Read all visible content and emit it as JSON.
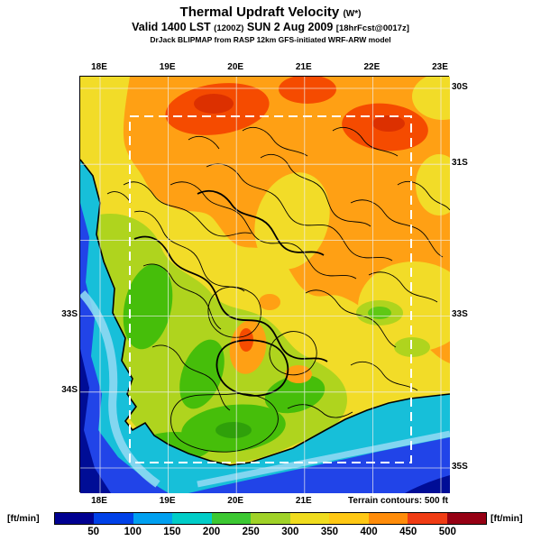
{
  "header": {
    "title": "Thermal Updraft Velocity",
    "title_unit": "(W*)",
    "valid_line": {
      "prefix": "Valid 1400 LST",
      "zulu": "(1200Z)",
      "date": "SUN 2 Aug 2009",
      "fcst": "[18hrFcst@0017z]"
    },
    "attribution": "DrJack BLIPMAP from RASP 12km GFS-initiated WRF-ARW model"
  },
  "map": {
    "axis": {
      "top": [
        "18E",
        "19E",
        "20E",
        "21E",
        "22E",
        "23E"
      ],
      "bottom": [
        "18E",
        "19E",
        "20E",
        "21E"
      ],
      "left": [
        "33S",
        "34S"
      ],
      "right": [
        "30S",
        "31S",
        "33S",
        "35S"
      ]
    }
  },
  "legend": {
    "unit_left": "[ft/min]",
    "unit_right": "[ft/min]",
    "terrain_note": "Terrain contours: 500 ft",
    "ticks": [
      "50",
      "100",
      "150",
      "200",
      "250",
      "300",
      "350",
      "400",
      "450",
      "500"
    ],
    "colors": [
      "#000091",
      "#0041E8",
      "#00A0F0",
      "#00CDC8",
      "#3CC832",
      "#A0D228",
      "#F0DC1E",
      "#FFC814",
      "#FF8C0A",
      "#F03C14",
      "#960014"
    ]
  },
  "chart_data": {
    "type": "heatmap",
    "title": "Thermal Updraft Velocity (W*)",
    "units": "ft/min",
    "scale_breakpoints": [
      50,
      100,
      150,
      200,
      250,
      300,
      350,
      400,
      450,
      500
    ],
    "lon_range": [
      "18E",
      "23E"
    ],
    "lat_range": [
      "30S",
      "35S"
    ]
  }
}
